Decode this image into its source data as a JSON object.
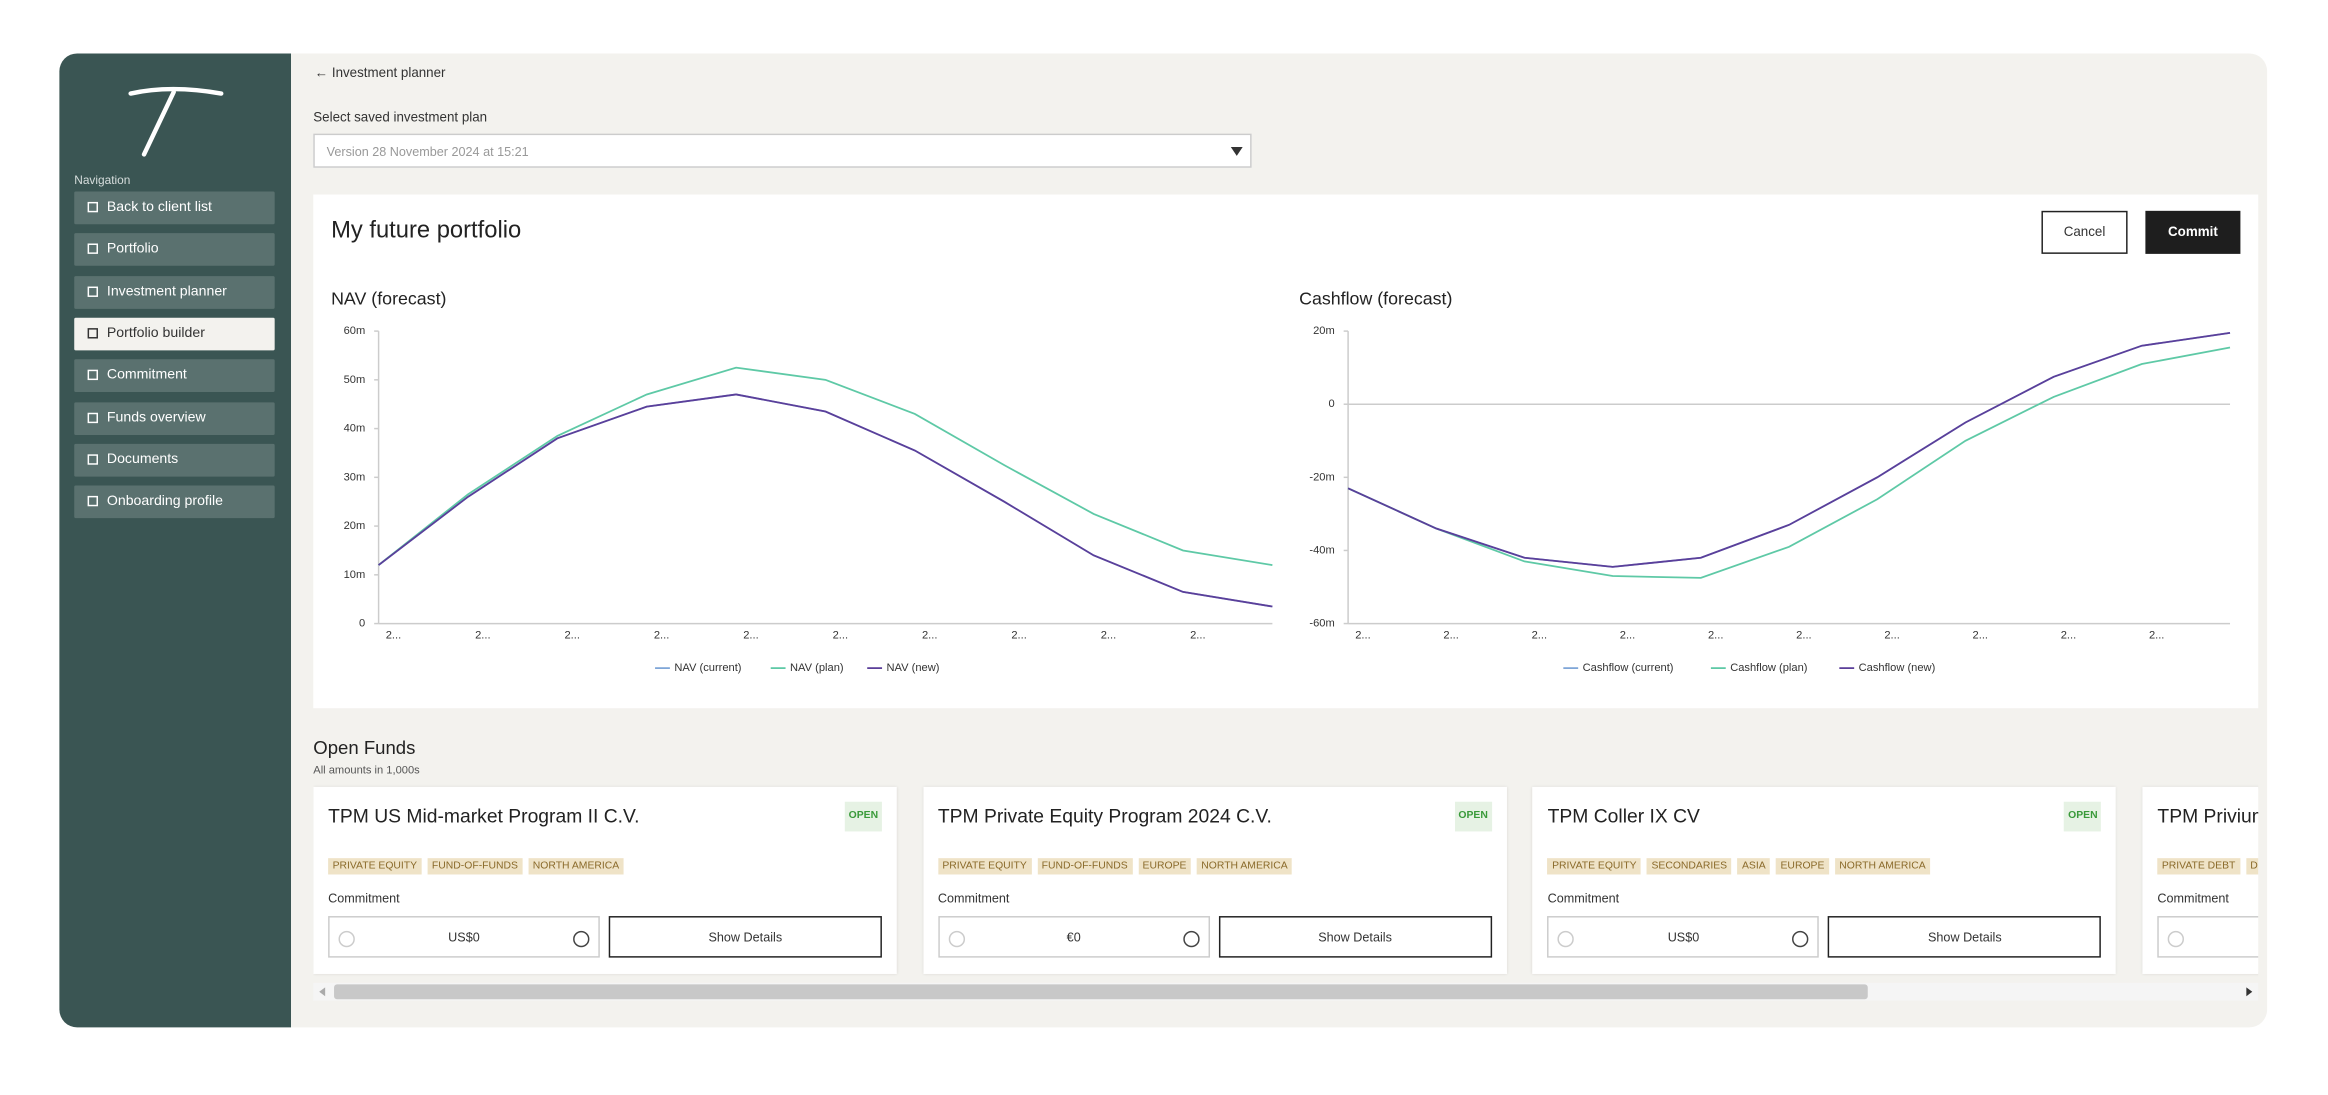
{
  "sidebar": {
    "nav_label": "Navigation",
    "items": [
      "Back to client list",
      "Portfolio",
      "Investment planner",
      "Portfolio builder",
      "Commitment",
      "Funds overview",
      "Documents",
      "Onboarding profile"
    ],
    "active": 3
  },
  "header": {
    "back": "Investment planner",
    "select_label": "Select saved investment plan",
    "select_value": "Version 28 November 2024 at 15:21"
  },
  "panel": {
    "title": "My future portfolio",
    "cancel": "Cancel",
    "commit": "Commit"
  },
  "chart_data": [
    {
      "type": "line",
      "title": "NAV (forecast)",
      "categories": [
        "2...",
        "2...",
        "2...",
        "2...",
        "2...",
        "2...",
        "2...",
        "2...",
        "2...",
        "2...",
        null
      ],
      "series": [
        {
          "name": "NAV (current)",
          "color": "#7fa6d8",
          "values": [
            12,
            26,
            38,
            44.5,
            47,
            43.5,
            35.5,
            25,
            14,
            6.5,
            3.5
          ]
        },
        {
          "name": "NAV (plan)",
          "color": "#5ec9a6",
          "values": [
            12,
            26.5,
            38.5,
            47,
            52.5,
            50,
            43,
            32.5,
            22.5,
            15,
            12
          ]
        },
        {
          "name": "NAV (new)",
          "color": "#5b3f9a",
          "values": [
            12,
            26,
            38,
            44.5,
            47,
            43.5,
            35.5,
            25,
            14,
            6.5,
            3.5
          ]
        }
      ],
      "ylim": [
        0,
        60
      ],
      "yticks": [
        0,
        {
          "value": 10,
          "label": "10m"
        },
        {
          "value": 20,
          "label": "20m"
        },
        {
          "value": 30,
          "label": "30m"
        },
        {
          "value": 40,
          "label": "40m"
        },
        {
          "value": 50,
          "label": "50m"
        },
        {
          "value": 60,
          "label": "60m"
        }
      ],
      "legend": "bottom"
    },
    {
      "type": "line",
      "title": "Cashflow (forecast)",
      "categories": [
        "2...",
        "2...",
        "2...",
        "2...",
        "2...",
        "2...",
        "2...",
        "2...",
        "2...",
        "2...",
        null
      ],
      "series": [
        {
          "name": "Cashflow (current)",
          "color": "#7fa6d8",
          "values": [
            -23,
            -34,
            -42,
            -44.5,
            -42,
            -33,
            -20,
            -5,
            7.5,
            16,
            19.5
          ]
        },
        {
          "name": "Cashflow (plan)",
          "color": "#5ec9a6",
          "values": [
            -23,
            -34,
            -43,
            -47,
            -47.5,
            -39,
            -26,
            -10,
            2,
            11,
            15.5
          ]
        },
        {
          "name": "Cashflow (new)",
          "color": "#5b3f9a",
          "values": [
            -23,
            -34,
            -42,
            -44.5,
            -42,
            -33,
            -20,
            -5,
            7.5,
            16,
            19.5
          ]
        }
      ],
      "ylim": [
        -60,
        20
      ],
      "yticks": [
        {
          "value": -60,
          "label": "-60m"
        },
        {
          "value": -40,
          "label": "-40m"
        },
        {
          "value": -20,
          "label": "-20m"
        },
        0,
        {
          "value": 20,
          "label": "20m"
        }
      ],
      "legend": "bottom"
    }
  ],
  "funds": {
    "title": "Open Funds",
    "subtitle": "All amounts in 1,000s",
    "commitment_label": "Commitment",
    "button": "Show Details",
    "cards": [
      {
        "name": "TPM US Mid-market Program II C.V.",
        "status": "OPEN",
        "tags": [
          "PRIVATE EQUITY",
          "FUND-OF-FUNDS",
          "NORTH AMERICA"
        ],
        "amount": "US$0"
      },
      {
        "name": "TPM Private Equity Program 2024 C.V.",
        "status": "OPEN",
        "tags": [
          "PRIVATE EQUITY",
          "FUND-OF-FUNDS",
          "EUROPE",
          "NORTH AMERICA"
        ],
        "amount": "€0"
      },
      {
        "name": "TPM Coller IX CV",
        "status": "OPEN",
        "tags": [
          "PRIVATE EQUITY",
          "SECONDARIES",
          "ASIA",
          "EUROPE",
          "NORTH AMERICA"
        ],
        "amount": "US$0"
      },
      {
        "name": "TPM Privium",
        "tags": [
          "PRIVATE DEBT",
          "DI"
        ]
      }
    ]
  }
}
